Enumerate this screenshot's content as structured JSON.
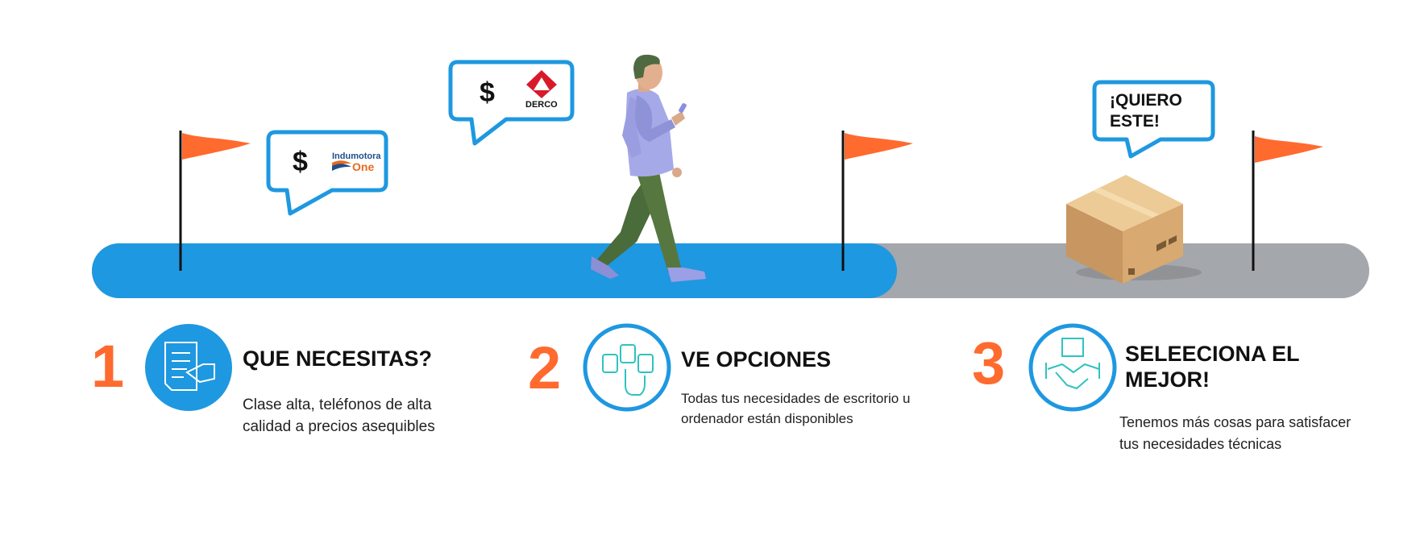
{
  "colors": {
    "progress_blue": "#1e98e0",
    "track_gray": "#a4a7ab",
    "flag_orange": "#ff6a2f",
    "number_orange": "#ff6a2f",
    "bubble_border": "#1e98e0",
    "icon_teal": "#2fc3c0"
  },
  "bubbles": {
    "indumotora": {
      "price_symbol": "$",
      "logo_line1": "Indumotora",
      "logo_line2": "One"
    },
    "derco": {
      "price_symbol": "$",
      "logo_text": "DERCO"
    },
    "wish": {
      "line1": "¡QUIERO",
      "line2": "ESTE!"
    }
  },
  "steps": [
    {
      "number": "1",
      "icon": "document-hand-icon",
      "title": "QUE NECESITAS?",
      "desc_line1": "Clase alta, teléfonos de alta",
      "desc_line2": "calidad a precios asequibles"
    },
    {
      "number": "2",
      "icon": "select-options-icon",
      "title": "VE OPCIONES",
      "desc_line1": "Todas tus necesidades de escritorio u",
      "desc_line2": "ordenador están disponibles"
    },
    {
      "number": "3",
      "icon": "handshake-box-icon",
      "title_line1": "SELEECIONA EL",
      "title_line2": "MEJOR!",
      "desc_line1": "Tenemos más cosas para satisfacer",
      "desc_line2": "tus necesidades técnicas"
    }
  ],
  "progress": {
    "fraction_complete": 0.63
  }
}
